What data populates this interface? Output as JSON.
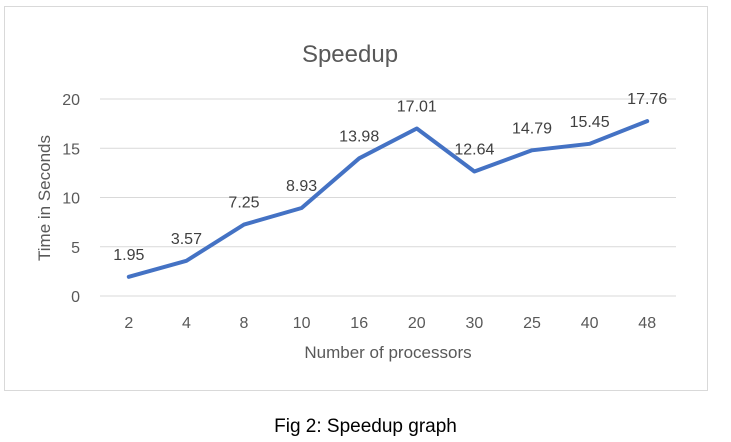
{
  "chart_data": {
    "type": "line",
    "title": "Speedup",
    "xlabel": "Number of processors",
    "ylabel": "Time in Seconds",
    "categories": [
      "2",
      "4",
      "8",
      "10",
      "16",
      "20",
      "30",
      "25",
      "40",
      "48"
    ],
    "series": [
      {
        "values": [
          1.95,
          3.57,
          7.25,
          8.93,
          13.98,
          17.01,
          12.64,
          14.79,
          15.45,
          17.76
        ]
      }
    ],
    "data_labels": [
      "1.95",
      "3.57",
      "7.25",
      "8.93",
      "13.98",
      "17.01",
      "12.64",
      "14.79",
      "15.45",
      "17.76"
    ],
    "ylim": [
      0,
      20
    ],
    "yticks": [
      0,
      5,
      10,
      15,
      20
    ],
    "grid": true,
    "line_color": "#4472c4"
  },
  "caption": "Fig 2: Speedup graph"
}
